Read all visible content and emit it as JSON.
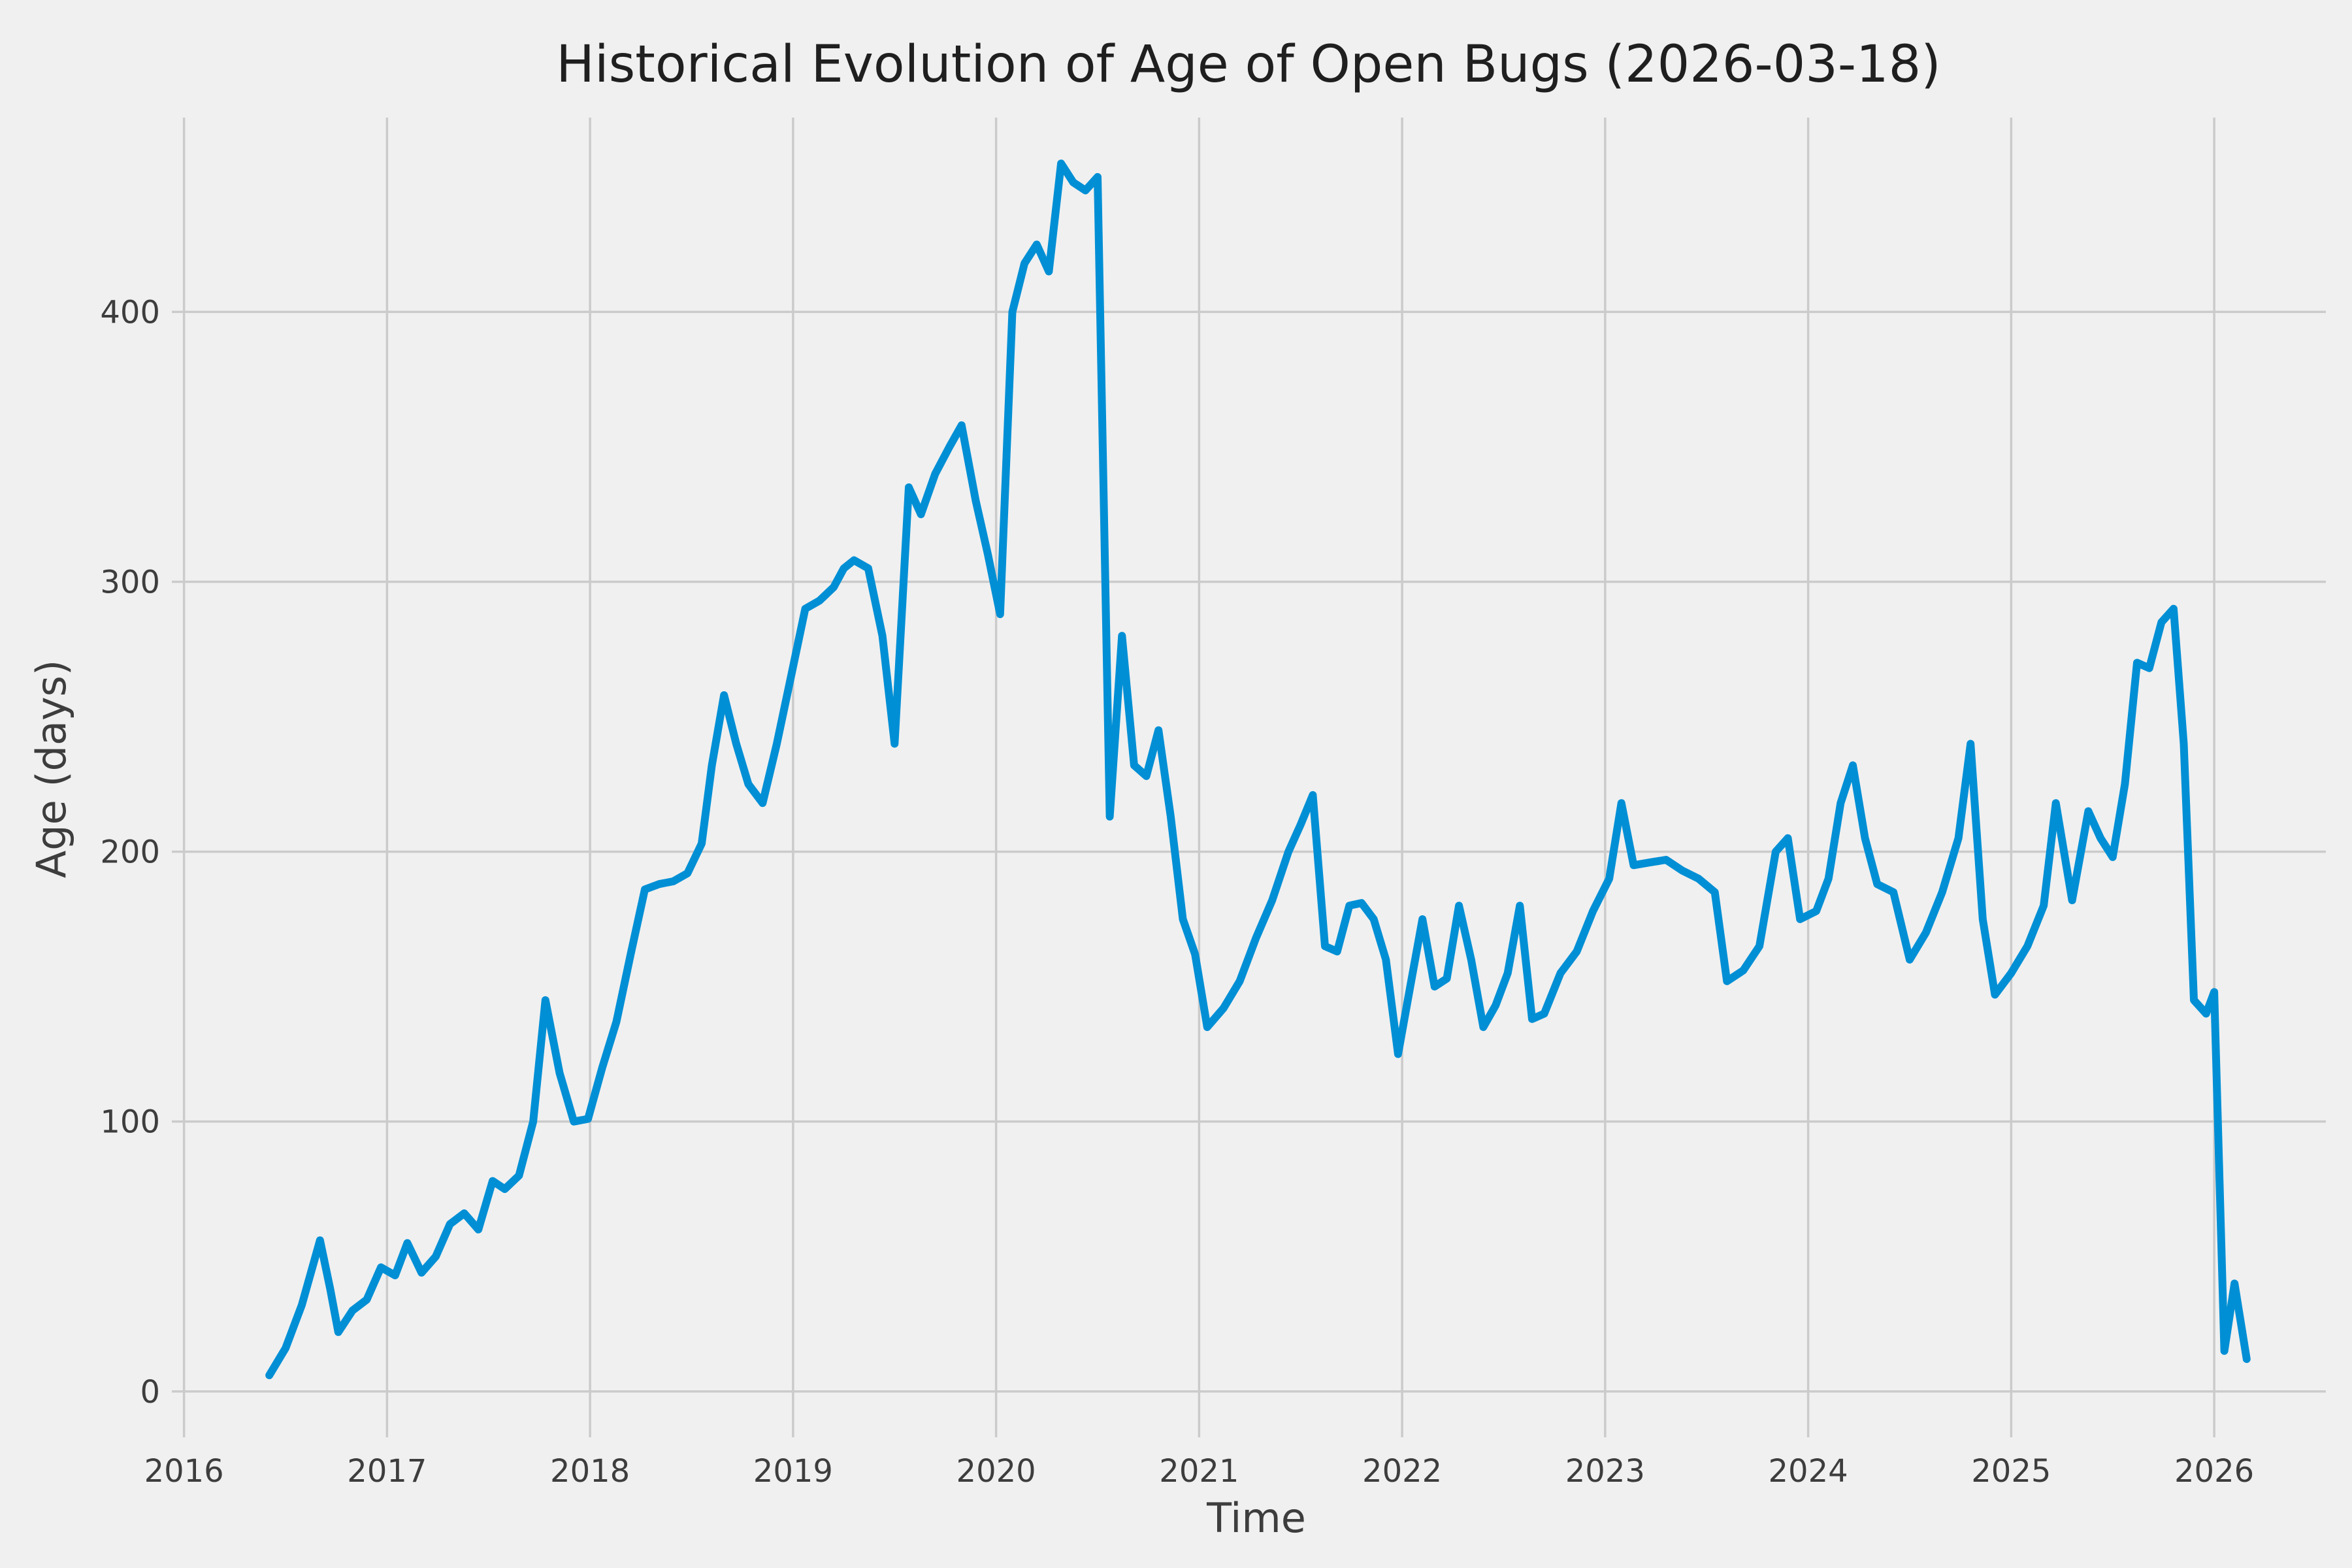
{
  "figure": {
    "background_color": "#f0f0f0",
    "grid_color": "#cbcbcb",
    "line_color": "#008fd5",
    "text_color": "#3d3d3d",
    "title_color": "#1f1f1f"
  },
  "chart_data": {
    "type": "line",
    "title": "Historical Evolution of Age of Open Bugs (2026-03-18)",
    "xlabel": "Time",
    "ylabel": "Age (days)",
    "x_ticks": [
      2016,
      2017,
      2018,
      2019,
      2020,
      2021,
      2022,
      2023,
      2024,
      2025,
      2026
    ],
    "y_ticks": [
      0,
      100,
      200,
      300,
      400
    ],
    "xlim": [
      2015.94,
      2026.55
    ],
    "ylim": [
      -17,
      472
    ],
    "grid": true,
    "legend": "none",
    "series": [
      {
        "name": "age_of_open_bugs_days",
        "points": [
          [
            2016.42,
            6
          ],
          [
            2016.5,
            16
          ],
          [
            2016.58,
            32
          ],
          [
            2016.67,
            56
          ],
          [
            2016.72,
            38
          ],
          [
            2016.76,
            22
          ],
          [
            2016.83,
            30
          ],
          [
            2016.9,
            34
          ],
          [
            2016.97,
            46
          ],
          [
            2017.04,
            43
          ],
          [
            2017.1,
            55
          ],
          [
            2017.17,
            44
          ],
          [
            2017.24,
            50
          ],
          [
            2017.31,
            62
          ],
          [
            2017.38,
            66
          ],
          [
            2017.45,
            60
          ],
          [
            2017.52,
            78
          ],
          [
            2017.58,
            75
          ],
          [
            2017.65,
            80
          ],
          [
            2017.72,
            100
          ],
          [
            2017.78,
            145
          ],
          [
            2017.85,
            118
          ],
          [
            2017.92,
            100
          ],
          [
            2017.99,
            101
          ],
          [
            2018.06,
            120
          ],
          [
            2018.13,
            137
          ],
          [
            2018.2,
            162
          ],
          [
            2018.27,
            186
          ],
          [
            2018.34,
            188
          ],
          [
            2018.41,
            189
          ],
          [
            2018.48,
            192
          ],
          [
            2018.55,
            203
          ],
          [
            2018.6,
            232
          ],
          [
            2018.66,
            258
          ],
          [
            2018.72,
            240
          ],
          [
            2018.78,
            225
          ],
          [
            2018.85,
            218
          ],
          [
            2018.92,
            240
          ],
          [
            2018.99,
            265
          ],
          [
            2019.06,
            290
          ],
          [
            2019.13,
            293
          ],
          [
            2019.2,
            298
          ],
          [
            2019.25,
            305
          ],
          [
            2019.3,
            308
          ],
          [
            2019.37,
            305
          ],
          [
            2019.44,
            280
          ],
          [
            2019.5,
            240
          ],
          [
            2019.57,
            335
          ],
          [
            2019.63,
            325
          ],
          [
            2019.7,
            340
          ],
          [
            2019.77,
            350
          ],
          [
            2019.83,
            358
          ],
          [
            2019.9,
            330
          ],
          [
            2019.96,
            310
          ],
          [
            2020.02,
            288
          ],
          [
            2020.08,
            400
          ],
          [
            2020.14,
            418
          ],
          [
            2020.2,
            425
          ],
          [
            2020.26,
            415
          ],
          [
            2020.32,
            455
          ],
          [
            2020.38,
            448
          ],
          [
            2020.44,
            445
          ],
          [
            2020.5,
            450
          ],
          [
            2020.56,
            213
          ],
          [
            2020.62,
            280
          ],
          [
            2020.68,
            232
          ],
          [
            2020.74,
            228
          ],
          [
            2020.8,
            245
          ],
          [
            2020.86,
            213
          ],
          [
            2020.92,
            175
          ],
          [
            2020.98,
            162
          ],
          [
            2021.04,
            135
          ],
          [
            2021.12,
            142
          ],
          [
            2021.2,
            152
          ],
          [
            2021.28,
            168
          ],
          [
            2021.36,
            182
          ],
          [
            2021.44,
            200
          ],
          [
            2021.5,
            210
          ],
          [
            2021.56,
            221
          ],
          [
            2021.62,
            165
          ],
          [
            2021.68,
            163
          ],
          [
            2021.74,
            180
          ],
          [
            2021.8,
            181
          ],
          [
            2021.86,
            175
          ],
          [
            2021.92,
            160
          ],
          [
            2021.98,
            125
          ],
          [
            2022.04,
            150
          ],
          [
            2022.1,
            175
          ],
          [
            2022.16,
            150
          ],
          [
            2022.22,
            153
          ],
          [
            2022.28,
            180
          ],
          [
            2022.34,
            160
          ],
          [
            2022.4,
            135
          ],
          [
            2022.46,
            143
          ],
          [
            2022.52,
            155
          ],
          [
            2022.58,
            180
          ],
          [
            2022.64,
            138
          ],
          [
            2022.7,
            140
          ],
          [
            2022.78,
            155
          ],
          [
            2022.86,
            163
          ],
          [
            2022.94,
            178
          ],
          [
            2023.02,
            190
          ],
          [
            2023.08,
            218
          ],
          [
            2023.14,
            195
          ],
          [
            2023.22,
            196
          ],
          [
            2023.3,
            197
          ],
          [
            2023.38,
            193
          ],
          [
            2023.46,
            190
          ],
          [
            2023.54,
            185
          ],
          [
            2023.6,
            152
          ],
          [
            2023.68,
            156
          ],
          [
            2023.76,
            165
          ],
          [
            2023.84,
            200
          ],
          [
            2023.9,
            205
          ],
          [
            2023.96,
            175
          ],
          [
            2024.04,
            178
          ],
          [
            2024.1,
            190
          ],
          [
            2024.16,
            218
          ],
          [
            2024.22,
            232
          ],
          [
            2024.28,
            205
          ],
          [
            2024.34,
            188
          ],
          [
            2024.42,
            185
          ],
          [
            2024.5,
            160
          ],
          [
            2024.58,
            170
          ],
          [
            2024.66,
            185
          ],
          [
            2024.74,
            205
          ],
          [
            2024.8,
            240
          ],
          [
            2024.86,
            175
          ],
          [
            2024.92,
            147
          ],
          [
            2025.0,
            155
          ],
          [
            2025.08,
            165
          ],
          [
            2025.16,
            180
          ],
          [
            2025.22,
            218
          ],
          [
            2025.3,
            182
          ],
          [
            2025.38,
            215
          ],
          [
            2025.44,
            205
          ],
          [
            2025.5,
            198
          ],
          [
            2025.56,
            225
          ],
          [
            2025.62,
            270
          ],
          [
            2025.68,
            268
          ],
          [
            2025.74,
            285
          ],
          [
            2025.8,
            290
          ],
          [
            2025.85,
            240
          ],
          [
            2025.9,
            145
          ],
          [
            2025.96,
            140
          ],
          [
            2026.0,
            148
          ],
          [
            2026.05,
            15
          ],
          [
            2026.1,
            40
          ],
          [
            2026.16,
            12
          ]
        ]
      }
    ]
  }
}
